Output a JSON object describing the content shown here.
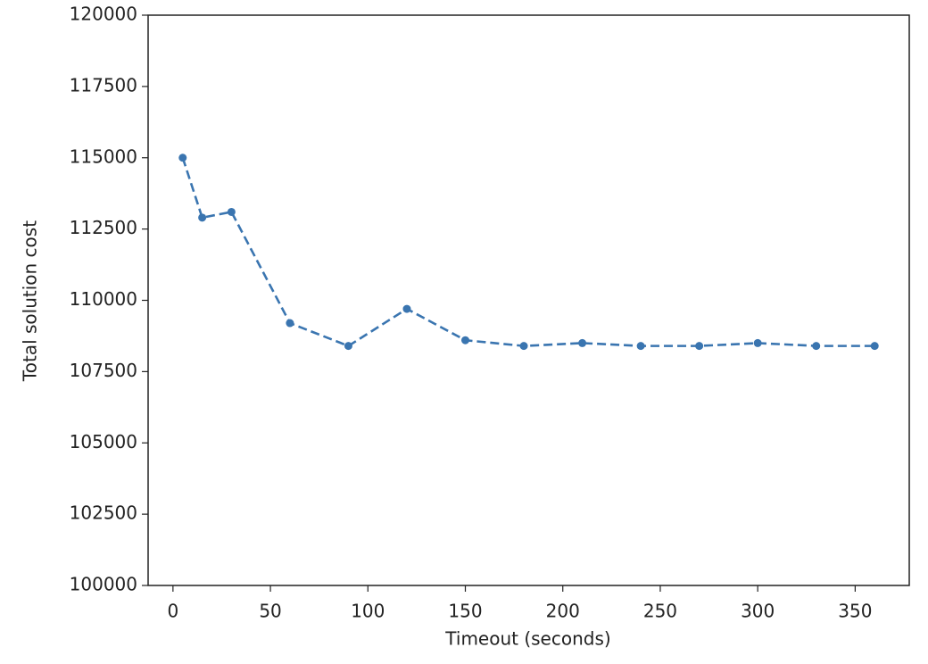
{
  "chart_data": {
    "type": "line",
    "x_label": "Timeout (seconds)",
    "y_label": "Total solution cost",
    "series": [
      {
        "color": "#3a75b0",
        "x": [
          5,
          15,
          30,
          60,
          90,
          120,
          150,
          180,
          210,
          240,
          270,
          300,
          330,
          360
        ],
        "values": [
          115000,
          112900,
          113100,
          109200,
          108400,
          109700,
          108600,
          108400,
          108500,
          108400,
          108400,
          108500,
          108400,
          108400
        ]
      }
    ],
    "xlim": [
      -12.75,
      377.75
    ],
    "xticks": [
      0,
      50,
      100,
      150,
      200,
      250,
      300,
      350
    ],
    "ylim": [
      100000,
      120000
    ],
    "yticks": [
      100000,
      102500,
      105000,
      107500,
      110000,
      112500,
      115000,
      117500,
      120000
    ],
    "line_style": "dashed",
    "grid": false
  }
}
